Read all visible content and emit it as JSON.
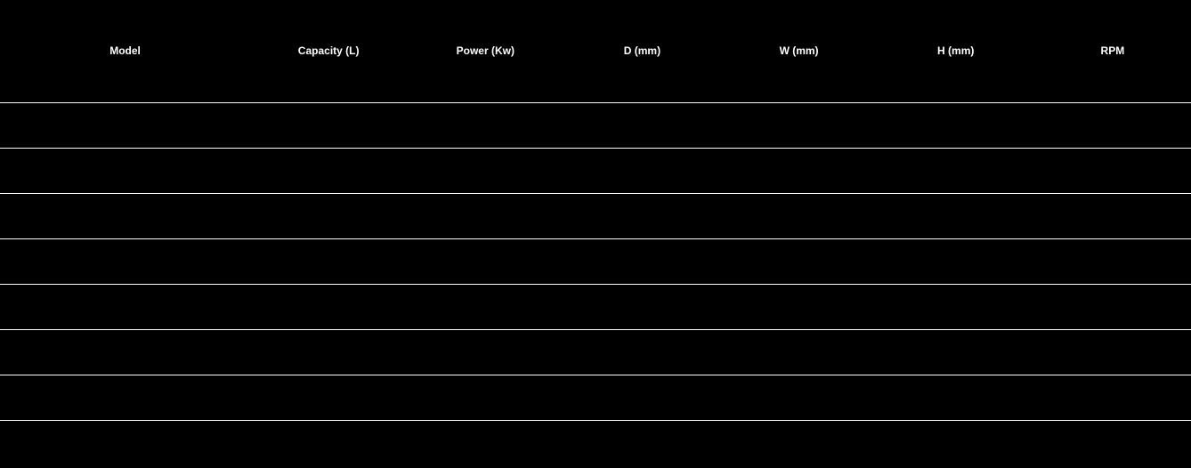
{
  "table": {
    "type": "table",
    "background_color": "#000000",
    "text_color": "#ffffff",
    "divider_color": "#ffffff",
    "header_fontsize": 12,
    "cell_fontsize": 12,
    "header_row_height": 115,
    "body_row_height": 51,
    "columns": [
      {
        "label": "Model",
        "width_pct": 21
      },
      {
        "label": "Capacity (L)",
        "width_pct": 13.16
      },
      {
        "label": "Power (Kw)",
        "width_pct": 13.16
      },
      {
        "label": "D (mm)",
        "width_pct": 13.16
      },
      {
        "label": "W (mm)",
        "width_pct": 13.16
      },
      {
        "label": "H (mm)",
        "width_pct": 13.16
      },
      {
        "label": "RPM",
        "width_pct": 13.16
      }
    ],
    "rows": [
      [
        "",
        "",
        "",
        "",
        "",
        "",
        ""
      ],
      [
        "",
        "",
        "",
        "",
        "",
        "",
        ""
      ],
      [
        "",
        "",
        "",
        "",
        "",
        "",
        ""
      ],
      [
        "",
        "",
        "",
        "",
        "",
        "",
        ""
      ],
      [
        "",
        "",
        "",
        "",
        "",
        "",
        ""
      ],
      [
        "",
        "",
        "",
        "",
        "",
        "",
        ""
      ],
      [
        "",
        "",
        "",
        "",
        "",
        "",
        ""
      ],
      [
        "",
        "",
        "",
        "",
        "",
        "",
        ""
      ]
    ]
  }
}
